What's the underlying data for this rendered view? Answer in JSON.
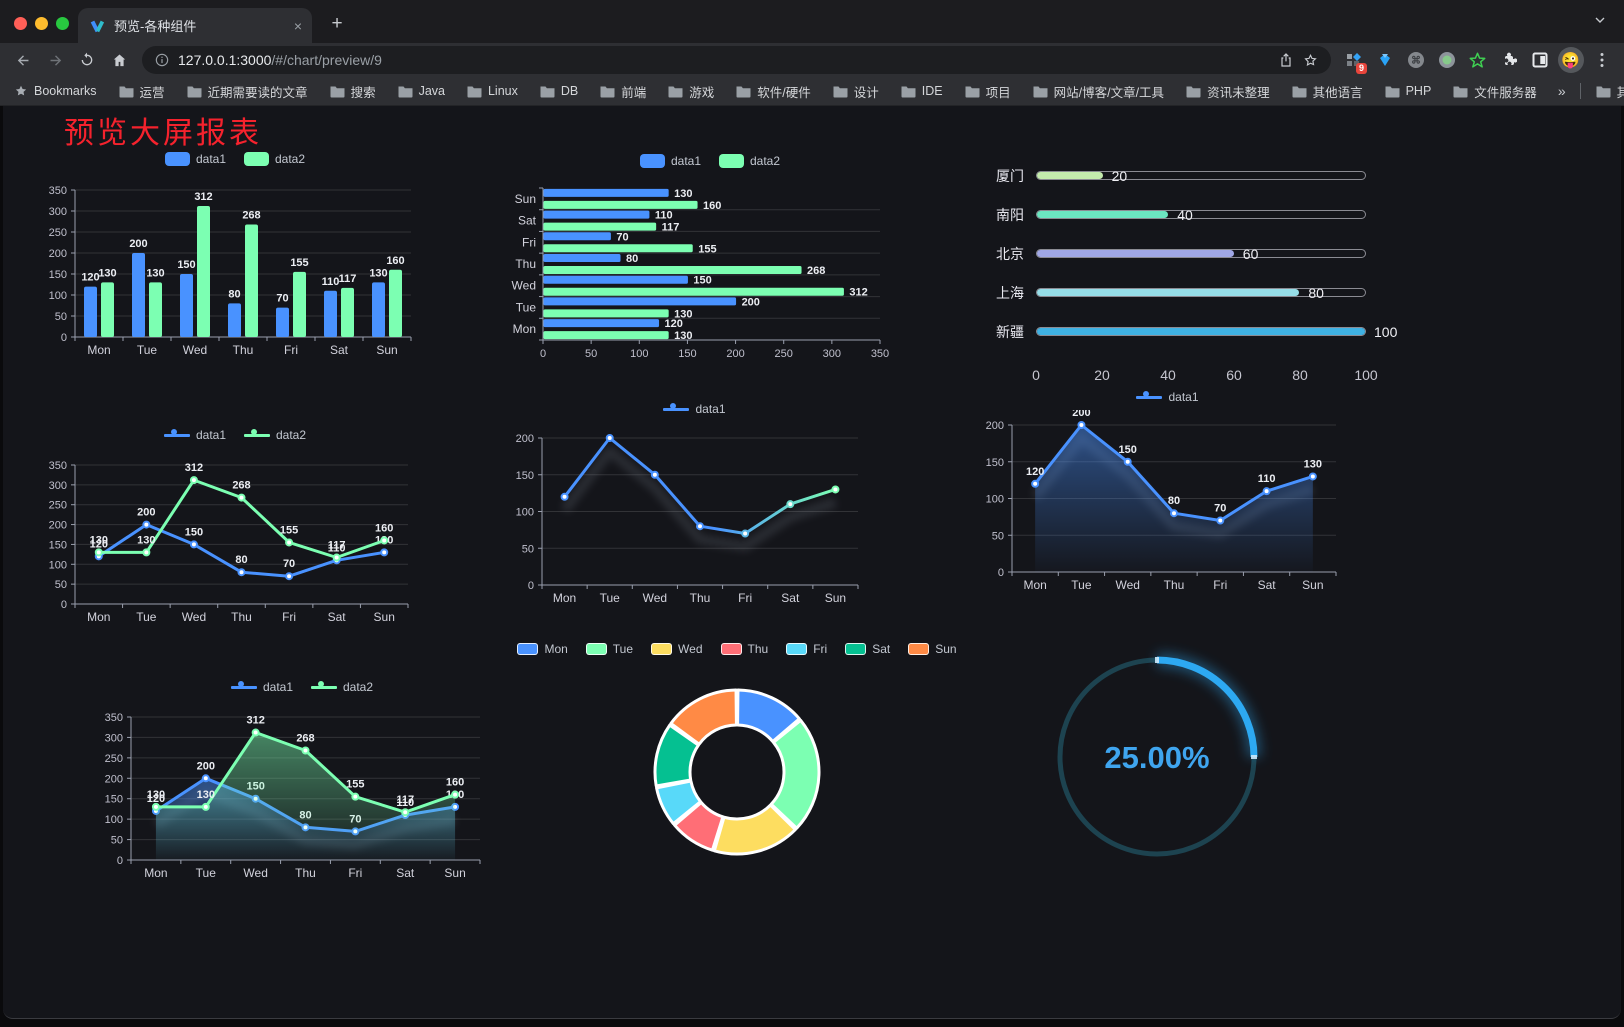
{
  "browser": {
    "window_controls": [
      "close",
      "minimize",
      "maximize"
    ],
    "tab": {
      "title": "预览-各种组件",
      "close_glyph": "×"
    },
    "new_tab_glyph": "+",
    "toolbar": {
      "url_host": "127.0.0.1:3000",
      "url_path": "/#/chart/preview/9",
      "extension_badge": "9"
    },
    "bookmarks": {
      "root_label": "Bookmarks",
      "folders": [
        "运营",
        "近期需要读的文章",
        "搜索",
        "Java",
        "Linux",
        "DB",
        "前端",
        "游戏",
        "软件/硬件",
        "设计",
        "IDE",
        "项目",
        "网站/博客/文章/工具",
        "资讯未整理",
        "其他语言",
        "PHP",
        "文件服务器"
      ],
      "overflow_chevron": "»",
      "other_bookmarks": "其他书签"
    }
  },
  "page": {
    "title": "预览大屏报表"
  },
  "colors": {
    "title_red": "#f5222d",
    "accent_blue": "#4992ff",
    "accent_green": "#7cffb2",
    "background": "#14151a"
  },
  "chart_data": [
    {
      "id": "grouped-bar",
      "type": "bar",
      "title": "",
      "xlabel": "",
      "ylabel": "",
      "legend_position": "top",
      "categories": [
        "Mon",
        "Tue",
        "Wed",
        "Thu",
        "Fri",
        "Sat",
        "Sun"
      ],
      "series": [
        {
          "name": "data1",
          "color": "#4992ff",
          "values": [
            120,
            200,
            150,
            80,
            70,
            110,
            130
          ]
        },
        {
          "name": "data2",
          "color": "#7cffb2",
          "values": [
            130,
            130,
            312,
            268,
            155,
            117,
            160
          ]
        }
      ],
      "ylim": [
        0,
        350
      ],
      "yticks": [
        0,
        50,
        100,
        150,
        200,
        250,
        300,
        350
      ],
      "grid": true,
      "value_labels": true
    },
    {
      "id": "horizontal-bar",
      "type": "bar",
      "orientation": "horizontal",
      "title": "",
      "xlabel": "",
      "ylabel": "",
      "legend_position": "top",
      "first_category_at_bottom": true,
      "categories": [
        "Mon",
        "Tue",
        "Wed",
        "Thu",
        "Fri",
        "Sat",
        "Sun"
      ],
      "series": [
        {
          "name": "data1",
          "color": "#4992ff",
          "values": [
            120,
            200,
            150,
            80,
            70,
            110,
            130
          ]
        },
        {
          "name": "data2",
          "color": "#7cffb2",
          "values": [
            130,
            130,
            312,
            268,
            155,
            117,
            160
          ]
        }
      ],
      "xlim": [
        0,
        350
      ],
      "xticks": [
        0,
        50,
        100,
        150,
        200,
        250,
        300,
        350
      ],
      "grid": true,
      "value_labels": true
    },
    {
      "id": "progress-bars",
      "type": "bar",
      "subtype": "progress",
      "categories": [
        "厦门",
        "南阳",
        "北京",
        "上海",
        "新疆"
      ],
      "values": [
        20,
        40,
        60,
        80,
        100
      ],
      "colors": [
        "#c4ebad",
        "#6be6c1",
        "#a0a7e6",
        "#96dee8",
        "#3fb1e3"
      ],
      "xlim": [
        0,
        100
      ],
      "xticks": [
        0,
        20,
        40,
        60,
        80,
        100
      ],
      "value_labels": true
    },
    {
      "id": "line-two-series",
      "type": "line",
      "title": "",
      "xlabel": "",
      "ylabel": "",
      "legend_position": "top",
      "categories": [
        "Mon",
        "Tue",
        "Wed",
        "Thu",
        "Fri",
        "Sat",
        "Sun"
      ],
      "series": [
        {
          "name": "data1",
          "color": "#4992ff",
          "values": [
            120,
            200,
            150,
            80,
            70,
            110,
            130
          ]
        },
        {
          "name": "data2",
          "color": "#7cffb2",
          "values": [
            130,
            130,
            312,
            268,
            155,
            117,
            160
          ]
        }
      ],
      "ylim": [
        0,
        350
      ],
      "yticks": [
        0,
        50,
        100,
        150,
        200,
        250,
        300,
        350
      ],
      "grid": true,
      "value_labels": true,
      "markers": true
    },
    {
      "id": "gradient-line",
      "type": "line",
      "title": "",
      "xlabel": "",
      "ylabel": "",
      "legend_position": "top",
      "categories": [
        "Mon",
        "Tue",
        "Wed",
        "Thu",
        "Fri",
        "Sat",
        "Sun"
      ],
      "series": [
        {
          "name": "data1",
          "gradient": [
            "#4992ff",
            "#7cffb2"
          ],
          "shadow": true,
          "values": [
            120,
            200,
            150,
            80,
            70,
            110,
            130
          ]
        }
      ],
      "ylim": [
        0,
        200
      ],
      "yticks": [
        0,
        50,
        100,
        150,
        200
      ],
      "grid": true,
      "value_labels": false,
      "markers": true
    },
    {
      "id": "area-line",
      "type": "area",
      "title": "",
      "xlabel": "",
      "ylabel": "",
      "legend_position": "top",
      "categories": [
        "Mon",
        "Tue",
        "Wed",
        "Thu",
        "Fri",
        "Sat",
        "Sun"
      ],
      "series": [
        {
          "name": "data1",
          "color": "#4992ff",
          "area": true,
          "shadow": true,
          "values": [
            120,
            200,
            150,
            80,
            70,
            110,
            130
          ]
        }
      ],
      "ylim": [
        0,
        200
      ],
      "yticks": [
        0,
        50,
        100,
        150,
        200
      ],
      "grid": true,
      "value_labels": true,
      "markers": true
    },
    {
      "id": "two-series-area",
      "type": "area",
      "title": "",
      "xlabel": "",
      "ylabel": "",
      "legend_position": "top",
      "categories": [
        "Mon",
        "Tue",
        "Wed",
        "Thu",
        "Fri",
        "Sat",
        "Sun"
      ],
      "series": [
        {
          "name": "data1",
          "color": "#4992ff",
          "area": true,
          "shadow": true,
          "values": [
            120,
            200,
            150,
            80,
            70,
            110,
            130
          ]
        },
        {
          "name": "data2",
          "color": "#7cffb2",
          "area": true,
          "values": [
            130,
            130,
            312,
            268,
            155,
            117,
            160
          ]
        }
      ],
      "ylim": [
        0,
        350
      ],
      "yticks": [
        0,
        50,
        100,
        150,
        200,
        250,
        300,
        350
      ],
      "grid": true,
      "value_labels": true,
      "markers": true
    },
    {
      "id": "donut",
      "type": "pie",
      "donut": true,
      "legend_position": "top",
      "border_color": "#ffffff",
      "slices": [
        {
          "name": "Mon",
          "value": 120,
          "color": "#4992ff"
        },
        {
          "name": "Tue",
          "value": 200,
          "color": "#7cffb2"
        },
        {
          "name": "Wed",
          "value": 150,
          "color": "#fddd60"
        },
        {
          "name": "Thu",
          "value": 80,
          "color": "#ff6e76"
        },
        {
          "name": "Fri",
          "value": 70,
          "color": "#58d9f9"
        },
        {
          "name": "Sat",
          "value": 110,
          "color": "#05c091"
        },
        {
          "name": "Sun",
          "value": 130,
          "color": "#ff8a45"
        }
      ]
    },
    {
      "id": "gauge",
      "type": "gauge",
      "value_percent": 25,
      "label": "25.00%",
      "color": "#2da9f2",
      "track_color": "#1d4350",
      "label_color": "#3fa5ef"
    }
  ]
}
